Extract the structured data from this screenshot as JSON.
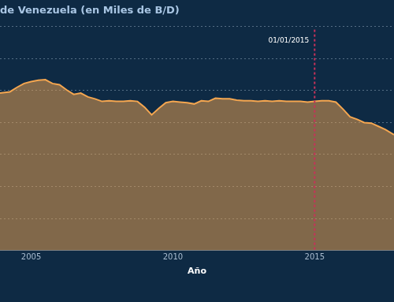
{
  "chart_data": {
    "type": "area",
    "title": "de Venezuela (en Miles de B/D)",
    "x_label": "Año",
    "x": [
      2003.9,
      2004.25,
      2004.5,
      2004.75,
      2005.0,
      2005.25,
      2005.5,
      2005.75,
      2006.0,
      2006.25,
      2006.5,
      2006.75,
      2007.0,
      2007.25,
      2007.5,
      2007.75,
      2008.0,
      2008.25,
      2008.5,
      2008.75,
      2009.0,
      2009.25,
      2009.5,
      2009.75,
      2010.0,
      2010.25,
      2010.5,
      2010.75,
      2011.0,
      2011.25,
      2011.5,
      2011.75,
      2012.0,
      2012.25,
      2012.5,
      2012.75,
      2013.0,
      2013.25,
      2013.5,
      2013.75,
      2014.0,
      2014.25,
      2014.5,
      2014.75,
      2015.0,
      2015.25,
      2015.5,
      2015.75,
      2016.0,
      2016.25,
      2016.5,
      2016.75,
      2017.0,
      2017.25,
      2017.5,
      2017.8
    ],
    "values": [
      2460,
      2480,
      2550,
      2610,
      2640,
      2660,
      2670,
      2610,
      2590,
      2510,
      2440,
      2460,
      2400,
      2370,
      2330,
      2340,
      2330,
      2330,
      2340,
      2330,
      2240,
      2120,
      2220,
      2310,
      2330,
      2320,
      2310,
      2290,
      2340,
      2330,
      2380,
      2370,
      2370,
      2350,
      2340,
      2340,
      2330,
      2340,
      2330,
      2340,
      2330,
      2330,
      2330,
      2320,
      2330,
      2340,
      2340,
      2320,
      2210,
      2090,
      2050,
      2000,
      1990,
      1940,
      1890,
      1810
    ],
    "color": "#f4a650",
    "xlim": [
      2003.9,
      2017.8
    ],
    "xticks": [
      2005,
      2010,
      2015
    ],
    "ylim": [
      0,
      3500
    ],
    "yticks": [
      0,
      500,
      1000,
      1500,
      2000,
      2500,
      3000,
      3500
    ],
    "grid": true,
    "tick_labels": "x",
    "annotations": [
      {
        "x": 2015,
        "text": "01/01/2015"
      }
    ]
  }
}
